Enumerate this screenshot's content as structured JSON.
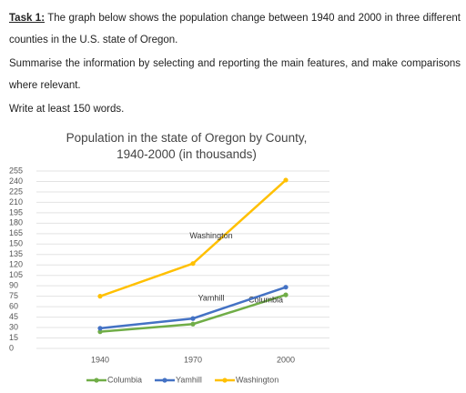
{
  "task": {
    "label": "Task 1:",
    "text": "The graph below shows the population change between 1940 and 2000 in three different counties in the U.S. state of Oregon."
  },
  "instructions": [
    "Summarise the information by selecting and reporting the main features, and make comparisons where relevant.",
    "Write at least 150 words."
  ],
  "chart_data": {
    "type": "line",
    "title": "Population in the state of Oregon by County, 1940-2000 (in thousands)",
    "categories": [
      "1940",
      "1970",
      "2000"
    ],
    "series": [
      {
        "name": "Columbia",
        "color": "#70ad47",
        "values": [
          24,
          35,
          77
        ]
      },
      {
        "name": "Yamhill",
        "color": "#4472c4",
        "values": [
          29,
          43,
          88
        ]
      },
      {
        "name": "Washington",
        "color": "#ffc000",
        "values": [
          75,
          122,
          242
        ]
      }
    ],
    "ylim": [
      0,
      255
    ],
    "yticks": [
      0,
      15,
      30,
      45,
      60,
      75,
      90,
      105,
      120,
      135,
      150,
      165,
      180,
      195,
      210,
      225,
      240,
      255
    ],
    "grid": true,
    "legend": "bottom"
  }
}
